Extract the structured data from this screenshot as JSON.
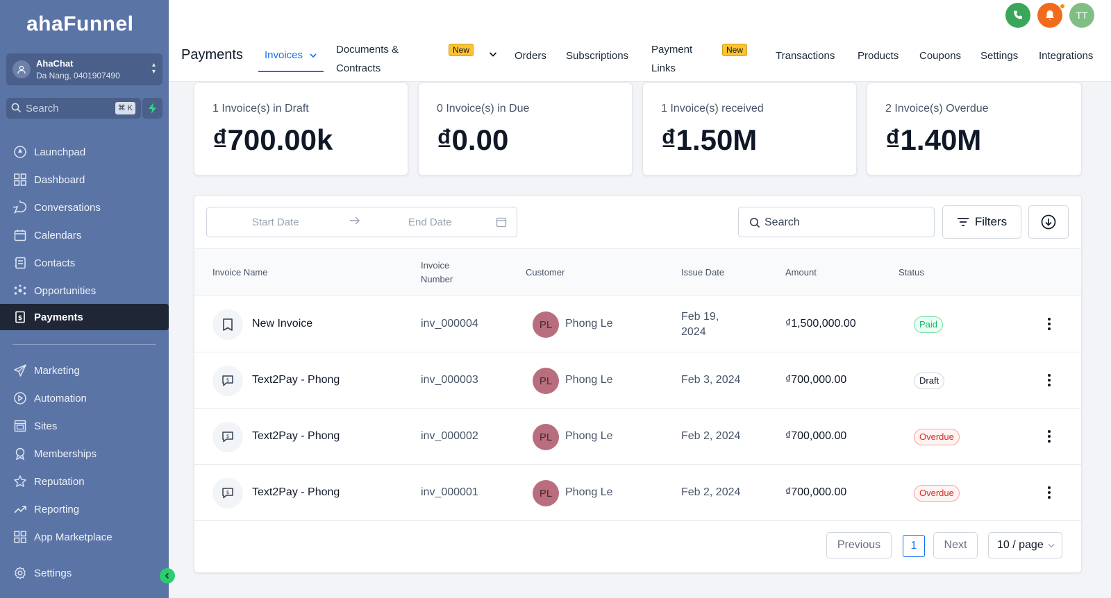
{
  "brand": {
    "logo_text": "ahaFunnel"
  },
  "account": {
    "name": "AhaChat",
    "location": "Da Nang, 0401907490"
  },
  "sidebar_search": {
    "placeholder": "Search",
    "shortcut": "⌘ K"
  },
  "sidebar": {
    "items": [
      {
        "label": "Launchpad",
        "icon": "launchpad-icon"
      },
      {
        "label": "Dashboard",
        "icon": "dashboard-icon"
      },
      {
        "label": "Conversations",
        "icon": "chat-icon"
      },
      {
        "label": "Calendars",
        "icon": "calendar-icon"
      },
      {
        "label": "Contacts",
        "icon": "contacts-icon"
      },
      {
        "label": "Opportunities",
        "icon": "opportunities-icon"
      },
      {
        "label": "Payments",
        "icon": "payments-icon",
        "active": true
      },
      {
        "label": "Marketing",
        "icon": "send-icon"
      },
      {
        "label": "Automation",
        "icon": "automation-icon"
      },
      {
        "label": "Sites",
        "icon": "sites-icon"
      },
      {
        "label": "Memberships",
        "icon": "membership-icon"
      },
      {
        "label": "Reputation",
        "icon": "star-icon"
      },
      {
        "label": "Reporting",
        "icon": "trend-icon"
      },
      {
        "label": "App Marketplace",
        "icon": "apps-icon"
      },
      {
        "label": "Settings",
        "icon": "gear-icon"
      }
    ]
  },
  "topbar": {
    "title": "Payments",
    "tabs": {
      "invoices": "Invoices",
      "documents_line1": "Documents &",
      "documents_line2": "Contracts",
      "new_badge": "New",
      "orders": "Orders",
      "subscriptions": "Subscriptions",
      "payment_links_line1": "Payment",
      "payment_links_line2": "Links",
      "new_badge_2": "New",
      "transactions": "Transactions",
      "products": "Products",
      "coupons": "Coupons",
      "settings": "Settings",
      "integrations": "Integrations"
    },
    "user_initials": "TT"
  },
  "stats": [
    {
      "label": "1 Invoice(s) in Draft",
      "value": "₫700.00k"
    },
    {
      "label": "0 Invoice(s) in Due",
      "value": "₫0.00"
    },
    {
      "label": "1 Invoice(s) received",
      "value": "₫1.50M"
    },
    {
      "label": "2 Invoice(s) Overdue",
      "value": "₫1.40M"
    }
  ],
  "filters": {
    "start_date_placeholder": "Start Date",
    "end_date_placeholder": "End Date",
    "search_placeholder": "Search",
    "filters_label": "Filters"
  },
  "table": {
    "headers": {
      "invoice_name": "Invoice Name",
      "invoice_number_line1": "Invoice",
      "invoice_number_line2": "Number",
      "customer": "Customer",
      "issue_date": "Issue Date",
      "amount": "Amount",
      "status": "Status"
    },
    "rows": [
      {
        "name": "New Invoice",
        "number": "inv_000004",
        "customer_initials": "PL",
        "customer": "Phong Le",
        "date_line1": "Feb 19,",
        "date_line2": "2024",
        "amount": "₫1,500,000.00",
        "status": "Paid"
      },
      {
        "name": "Text2Pay - Phong",
        "number": "inv_000003",
        "customer_initials": "PL",
        "customer": "Phong Le",
        "date_line1": "Feb 3, 2024",
        "date_line2": "",
        "amount": "₫700,000.00",
        "status": "Draft"
      },
      {
        "name": "Text2Pay - Phong",
        "number": "inv_000002",
        "customer_initials": "PL",
        "customer": "Phong Le",
        "date_line1": "Feb 2, 2024",
        "date_line2": "",
        "amount": "₫700,000.00",
        "status": "Overdue"
      },
      {
        "name": "Text2Pay - Phong",
        "number": "inv_000001",
        "customer_initials": "PL",
        "customer": "Phong Le",
        "date_line1": "Feb 2, 2024",
        "date_line2": "",
        "amount": "₫700,000.00",
        "status": "Overdue"
      }
    ]
  },
  "pagination": {
    "previous": "Previous",
    "current_page": "1",
    "next": "Next",
    "page_size": "10 / page"
  },
  "colors": {
    "sidebar": "#5b74a6",
    "accent": "#1570ef",
    "paid": "#12b76a",
    "overdue": "#d92d20",
    "phone": "#3aa65a",
    "bell": "#f26b1d",
    "avatar": "#7fbf83"
  }
}
